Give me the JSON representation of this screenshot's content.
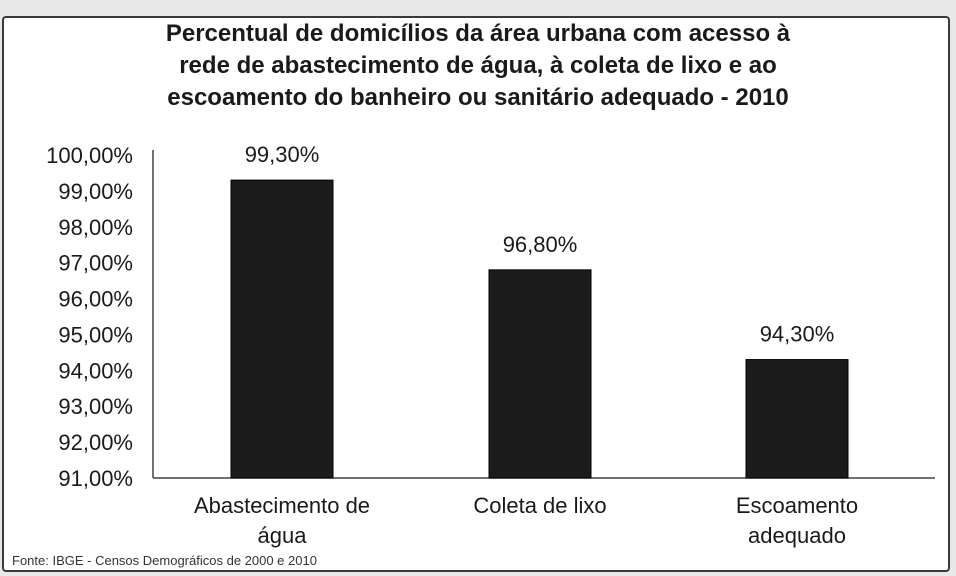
{
  "chart_data": {
    "type": "bar",
    "title": "Percentual de domicílios da área urbana com acesso à\nrede de abastecimento de água, à coleta de lixo e ao\nescoamento do banheiro ou sanitário adequado - 2010",
    "categories": [
      "Abastecimento de\nágua",
      "Coleta de lixo",
      "Escoamento\nadequado"
    ],
    "values": [
      99.3,
      96.8,
      94.3
    ],
    "data_labels": [
      "99,30%",
      "96,80%",
      "94,30%"
    ],
    "y_ticks": [
      "91,00%",
      "92,00%",
      "93,00%",
      "94,00%",
      "95,00%",
      "96,00%",
      "97,00%",
      "98,00%",
      "99,00%",
      "100,00%"
    ],
    "ylim": [
      91,
      100
    ],
    "grid": false,
    "legend": "none",
    "bar_color": "#1c1c1c"
  },
  "source": "Fonte: IBGE - Censos Demográficos de 2000 e 2010"
}
